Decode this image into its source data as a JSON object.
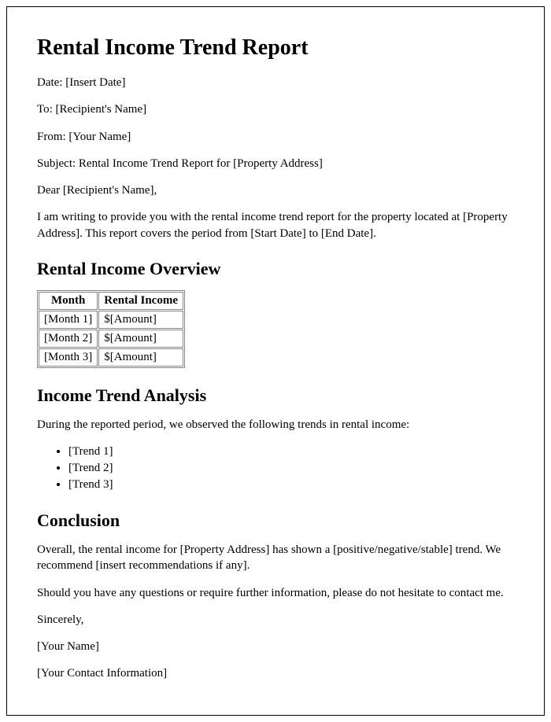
{
  "title": "Rental Income Trend Report",
  "meta": {
    "date_label": "Date: [Insert Date]",
    "to_label": "To: [Recipient's Name]",
    "from_label": "From: [Your Name]",
    "subject_label": "Subject: Rental Income Trend Report for [Property Address]"
  },
  "salutation": "Dear [Recipient's Name],",
  "intro": "I am writing to provide you with the rental income trend report for the property located at [Property Address]. This report covers the period from [Start Date] to [End Date].",
  "overview": {
    "heading": "Rental Income Overview",
    "table": {
      "columns": [
        "Month",
        "Rental Income"
      ],
      "rows": [
        [
          "[Month 1]",
          "$[Amount]"
        ],
        [
          "[Month 2]",
          "$[Amount]"
        ],
        [
          "[Month 3]",
          "$[Amount]"
        ]
      ]
    }
  },
  "analysis": {
    "heading": "Income Trend Analysis",
    "intro": "During the reported period, we observed the following trends in rental income:",
    "trends": [
      "[Trend 1]",
      "[Trend 2]",
      "[Trend 3]"
    ]
  },
  "conclusion": {
    "heading": "Conclusion",
    "p1": "Overall, the rental income for [Property Address] has shown a [positive/negative/stable] trend. We recommend [insert recommendations if any].",
    "p2": "Should you have any questions or require further information, please do not hesitate to contact me."
  },
  "closing": {
    "sincerely": "Sincerely,",
    "name": "[Your Name]",
    "contact": "[Your Contact Information]"
  }
}
